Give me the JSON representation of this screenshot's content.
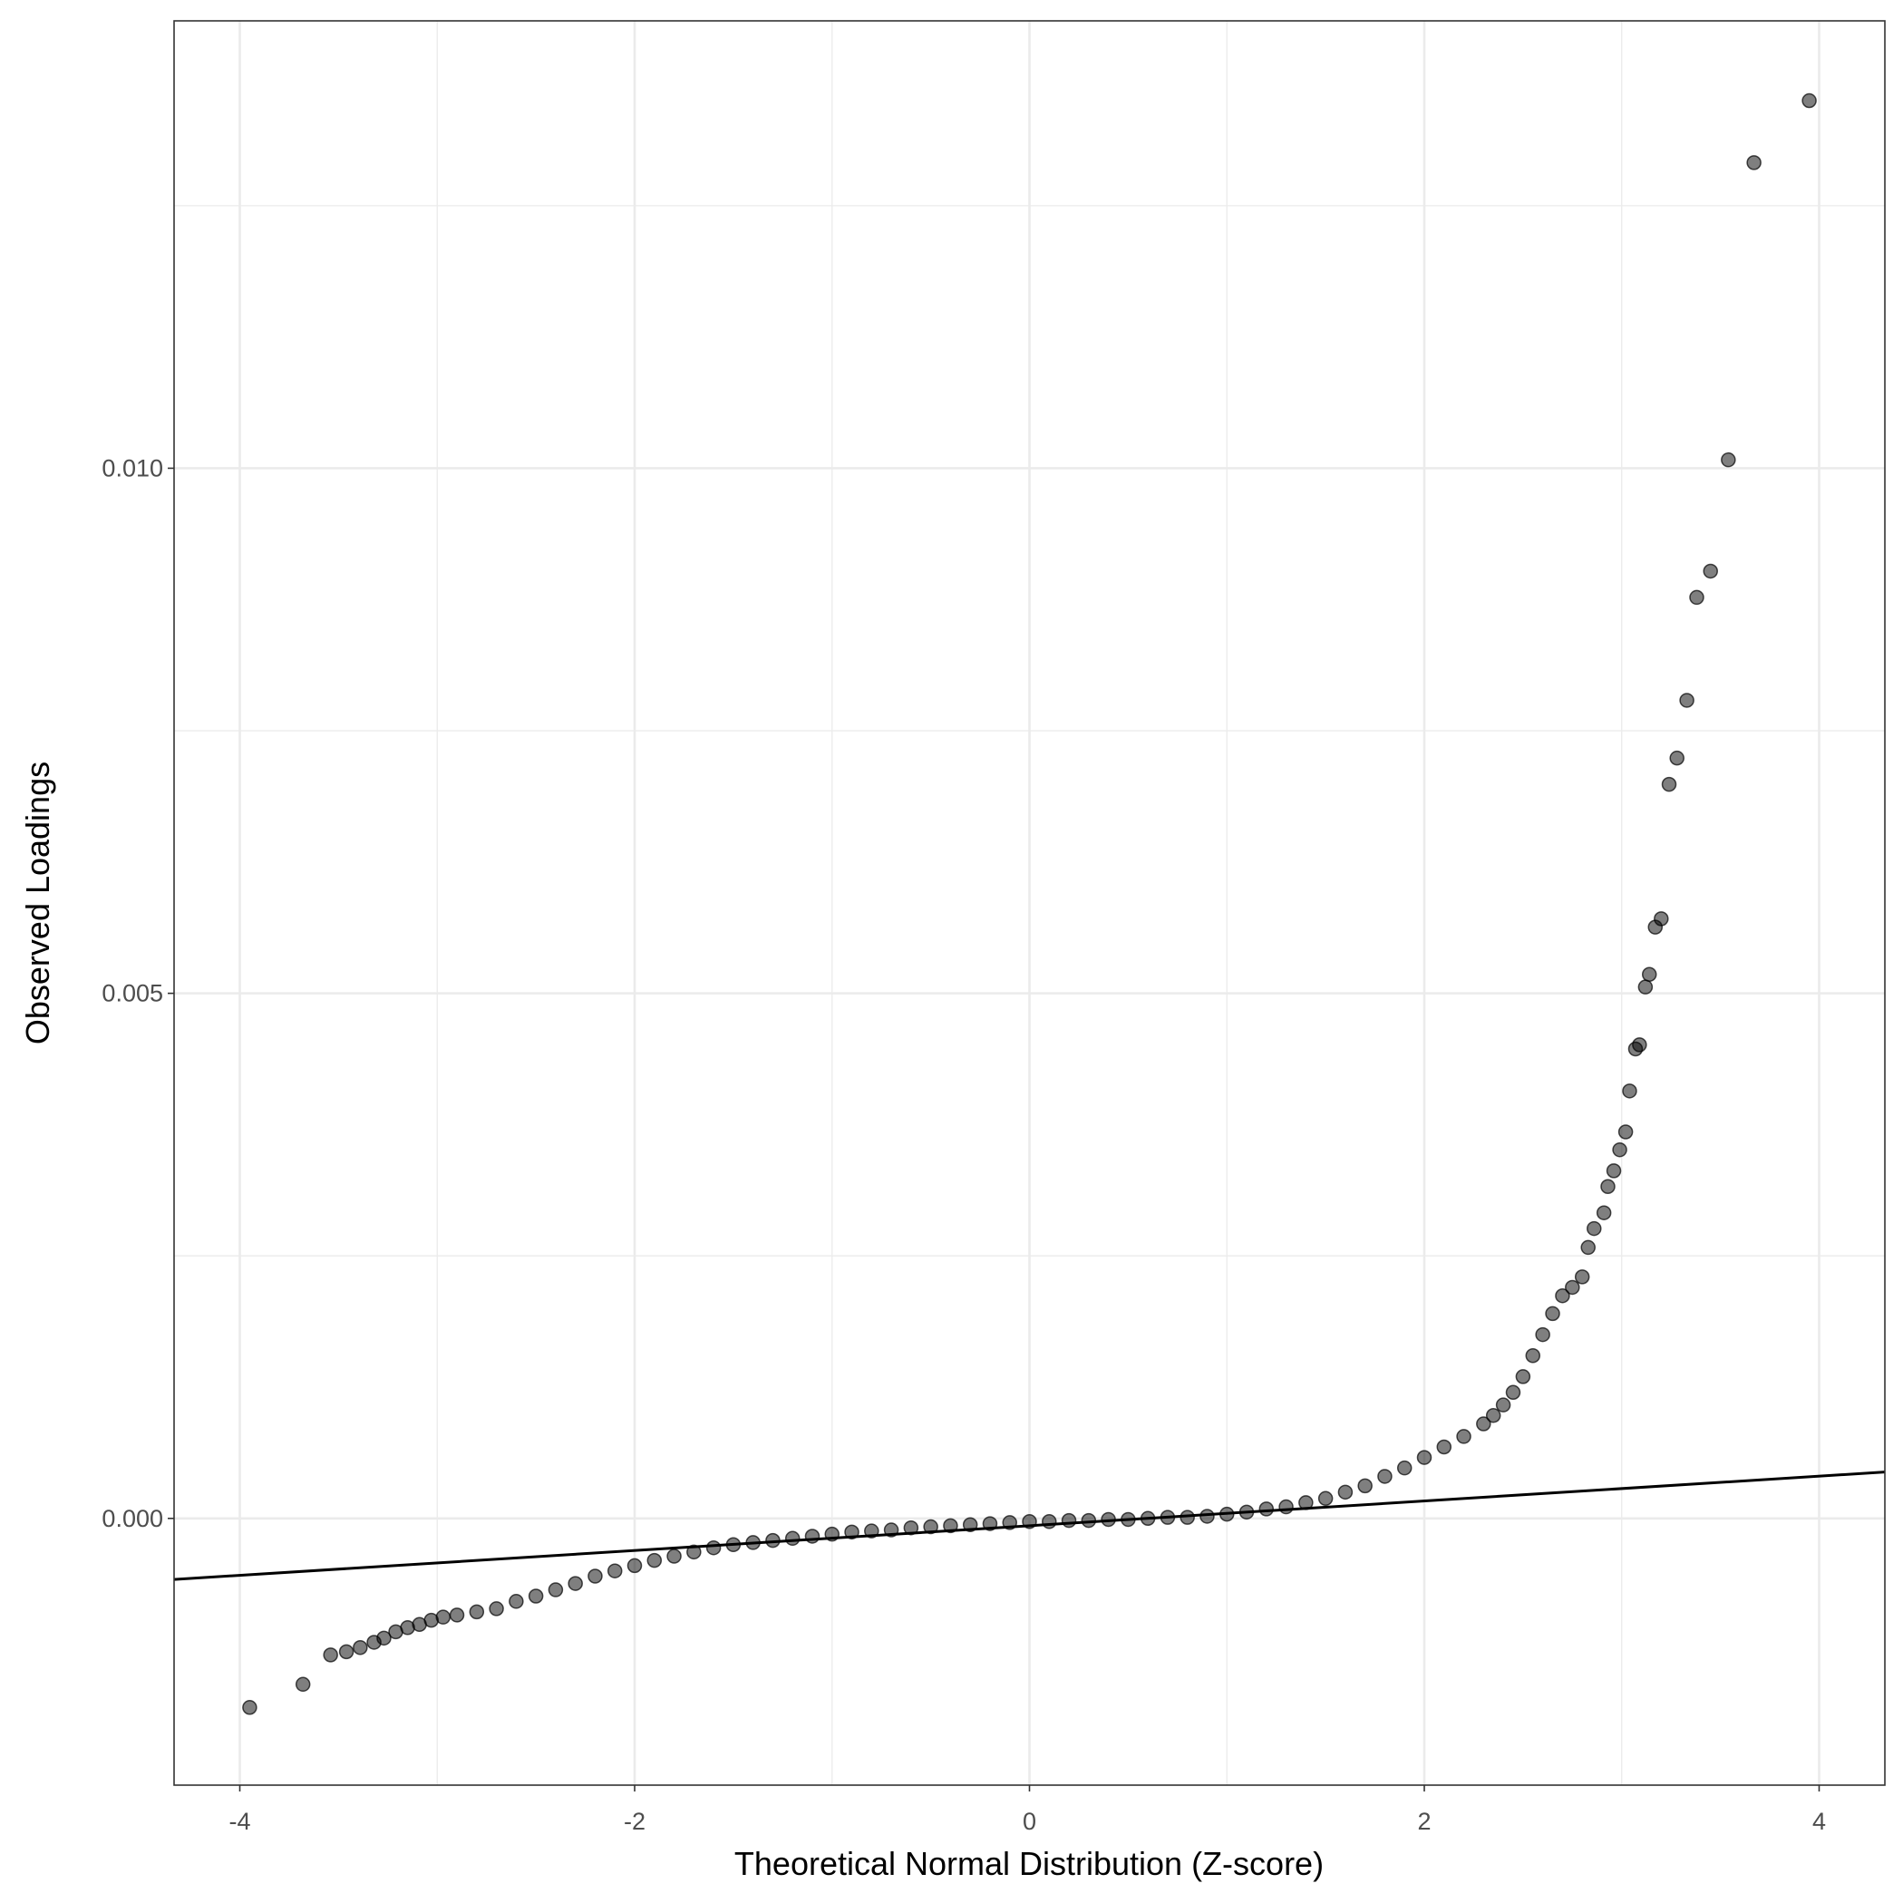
{
  "chart_data": {
    "type": "scatter",
    "xlabel": "Theoretical Normal Distribution (Z-score)",
    "ylabel": "Observed Loadings",
    "xlim": [
      -4.333,
      4.333
    ],
    "ylim": [
      -0.00254,
      0.01426
    ],
    "xticks": [
      -4,
      -2,
      0,
      2,
      4
    ],
    "yticks": [
      {
        "value": 0,
        "label": "0.000"
      },
      {
        "value": 0.005,
        "label": "0.005"
      },
      {
        "value": 0.01,
        "label": "0.010"
      }
    ],
    "x_minor_ticks": [
      -3,
      -1,
      1,
      3
    ],
    "y_minor_ticks": [
      0.0025,
      0.0075,
      0.0125
    ],
    "grid": true,
    "color": "#000000",
    "point_opacity": 0.5,
    "reference_line": {
      "slope": 0.000118,
      "intercept": -7e-05,
      "color": "#000000"
    },
    "x": [
      -3.95,
      -3.68,
      -3.54,
      -3.46,
      -3.39,
      -3.32,
      -3.27,
      -3.21,
      -3.15,
      -3.09,
      -3.03,
      -2.97,
      -2.9,
      -2.8,
      -2.7,
      -2.6,
      -2.5,
      -2.4,
      -2.3,
      -2.2,
      -2.1,
      -2.0,
      -1.9,
      -1.8,
      -1.7,
      -1.6,
      -1.5,
      -1.4,
      -1.3,
      -1.2,
      -1.1,
      -1.0,
      -0.9,
      -0.8,
      -0.7,
      -0.6,
      -0.5,
      -0.4,
      -0.3,
      -0.2,
      -0.1,
      0,
      0.1,
      0.2,
      0.3,
      0.4,
      0.5,
      0.6,
      0.7,
      0.8,
      0.9,
      1.0,
      1.1,
      1.2,
      1.3,
      1.4,
      1.5,
      1.6,
      1.7,
      1.8,
      1.9,
      2.0,
      2.1,
      2.2,
      2.3,
      2.35,
      2.4,
      2.45,
      2.5,
      2.55,
      2.6,
      2.65,
      2.7,
      2.75,
      2.8,
      2.83,
      2.86,
      2.91,
      2.93,
      2.96,
      2.99,
      3.02,
      3.04,
      3.07,
      3.09,
      3.12,
      3.14,
      3.17,
      3.2,
      3.24,
      3.28,
      3.33,
      3.38,
      3.45,
      3.54,
      3.67,
      3.95
    ],
    "y": [
      -0.0018,
      -0.00158,
      -0.0013,
      -0.00127,
      -0.00123,
      -0.00118,
      -0.00114,
      -0.00108,
      -0.00104,
      -0.00101,
      -0.00097,
      -0.00094,
      -0.00092,
      -0.00089,
      -0.00086,
      -0.00079,
      -0.00074,
      -0.00068,
      -0.00062,
      -0.00055,
      -0.0005,
      -0.00045,
      -0.0004,
      -0.00036,
      -0.00032,
      -0.00028,
      -0.00025,
      -0.00023,
      -0.00021,
      -0.00019,
      -0.00017,
      -0.00015,
      -0.00013,
      -0.00012,
      -0.00011,
      -9e-05,
      -8e-05,
      -7e-05,
      -6e-05,
      -5e-05,
      -4e-05,
      -3e-05,
      -3e-05,
      -2e-05,
      -2e-05,
      -1e-05,
      -1e-05,
      0,
      1e-05,
      1e-05,
      2e-05,
      4e-05,
      6e-05,
      9e-05,
      0.00011,
      0.00015,
      0.00019,
      0.00025,
      0.00031,
      0.0004,
      0.00048,
      0.00058,
      0.00068,
      0.00078,
      0.0009,
      0.00098,
      0.00108,
      0.0012,
      0.00135,
      0.00155,
      0.00175,
      0.00195,
      0.00212,
      0.0022,
      0.0023,
      0.00258,
      0.00276,
      0.00291,
      0.00316,
      0.00331,
      0.00351,
      0.00368,
      0.00407,
      0.00447,
      0.00451,
      0.00506,
      0.00518,
      0.00563,
      0.00571,
      0.00699,
      0.00724,
      0.00779,
      0.00877,
      0.00902,
      0.01008,
      0.01291,
      0.0135
    ]
  }
}
